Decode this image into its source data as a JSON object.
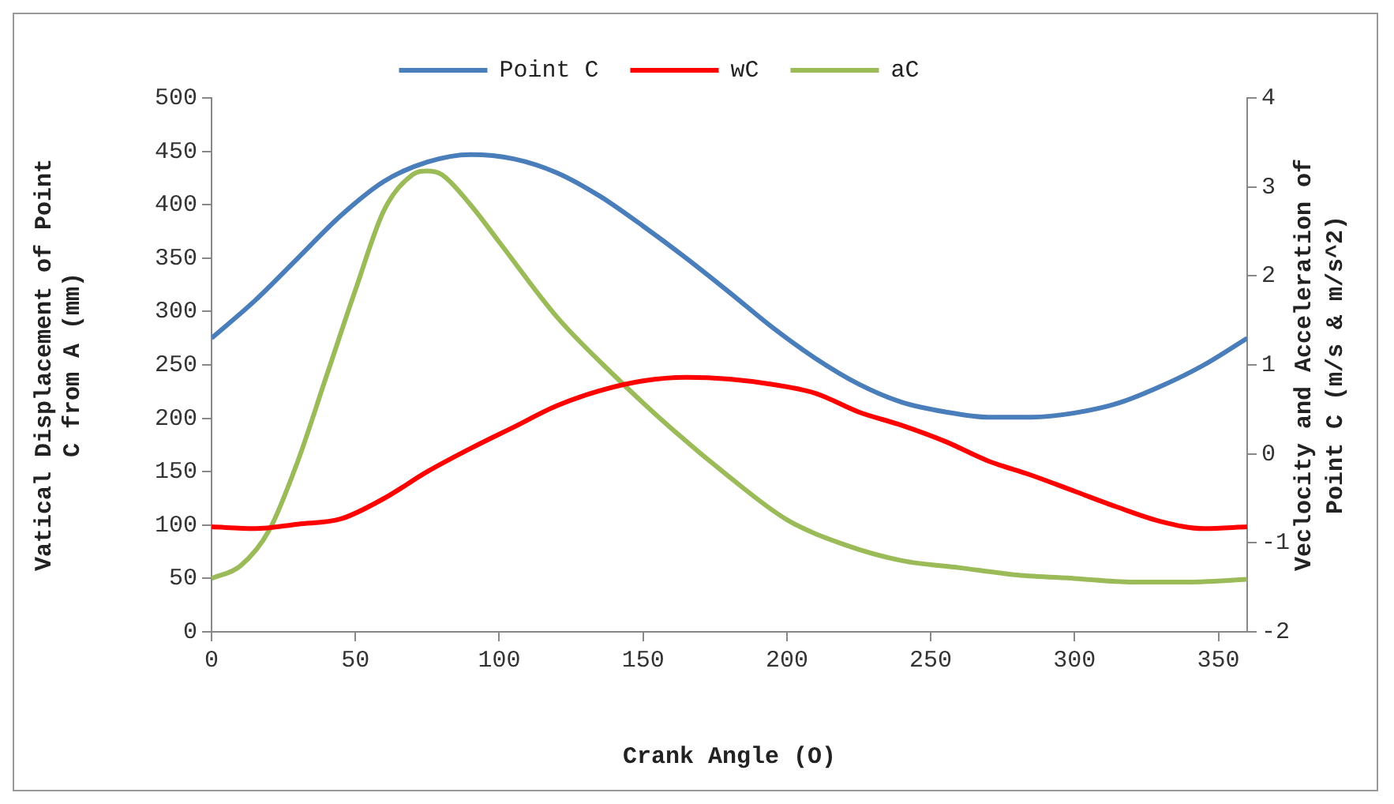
{
  "chart_data": {
    "type": "line",
    "xlabel": "Crank Angle (O)",
    "ylabel": "Vatical Displacement of Point C from A (mm)",
    "y2label": "Veclocity and Acceleration of Point C (m/s & m/s^2)",
    "xlim": [
      0,
      360
    ],
    "xticks": [
      0,
      50,
      100,
      150,
      200,
      250,
      300,
      350
    ],
    "ylim": [
      0,
      500
    ],
    "yticks": [
      0,
      50,
      100,
      150,
      200,
      250,
      300,
      350,
      400,
      450,
      500
    ],
    "y2lim": [
      -2,
      4
    ],
    "y2ticks": [
      -2,
      -1,
      0,
      1,
      2,
      3,
      4
    ],
    "grid": false,
    "legend": "top",
    "marker": "none",
    "line_style": "solid",
    "series": [
      {
        "name": "Point C",
        "color": "#4a7ebb",
        "x": [
          0,
          15,
          30,
          45,
          60,
          75,
          90,
          105,
          120,
          135,
          150,
          165,
          180,
          195,
          210,
          225,
          240,
          255,
          270,
          285,
          300,
          315,
          330,
          345,
          360
        ],
        "values": [
          275,
          310,
          350,
          390,
          422,
          440,
          447,
          443,
          430,
          408,
          380,
          350,
          318,
          285,
          256,
          232,
          215,
          206,
          201,
          201,
          205,
          214,
          230,
          250,
          275
        ]
      },
      {
        "name": "wC",
        "color": "#ff0000",
        "axis": "y2",
        "x": [
          0,
          15,
          30,
          45,
          60,
          75,
          90,
          105,
          120,
          135,
          150,
          165,
          180,
          195,
          210,
          225,
          240,
          255,
          270,
          285,
          300,
          315,
          330,
          345,
          360
        ],
        "values": [
          -0.82,
          -0.84,
          -0.79,
          -0.73,
          -0.5,
          -0.2,
          0.06,
          0.3,
          0.54,
          0.71,
          0.82,
          0.86,
          0.84,
          0.78,
          0.68,
          0.47,
          0.32,
          0.14,
          -0.08,
          -0.24,
          -0.42,
          -0.6,
          -0.76,
          -0.84,
          -0.82
        ]
      },
      {
        "name": "aC",
        "color": "#9bbb59",
        "axis": "y2",
        "x": [
          0,
          10,
          20,
          30,
          40,
          50,
          60,
          70,
          75,
          80,
          90,
          100,
          120,
          140,
          160,
          180,
          200,
          220,
          240,
          260,
          280,
          300,
          320,
          340,
          360
        ],
        "values": [
          -1.4,
          -1.26,
          -0.86,
          -0.08,
          0.88,
          1.84,
          2.74,
          3.14,
          3.18,
          3.14,
          2.8,
          2.38,
          1.54,
          0.88,
          0.28,
          -0.26,
          -0.74,
          -1.02,
          -1.2,
          -1.28,
          -1.36,
          -1.4,
          -1.44,
          -1.44,
          -1.41
        ]
      }
    ]
  }
}
